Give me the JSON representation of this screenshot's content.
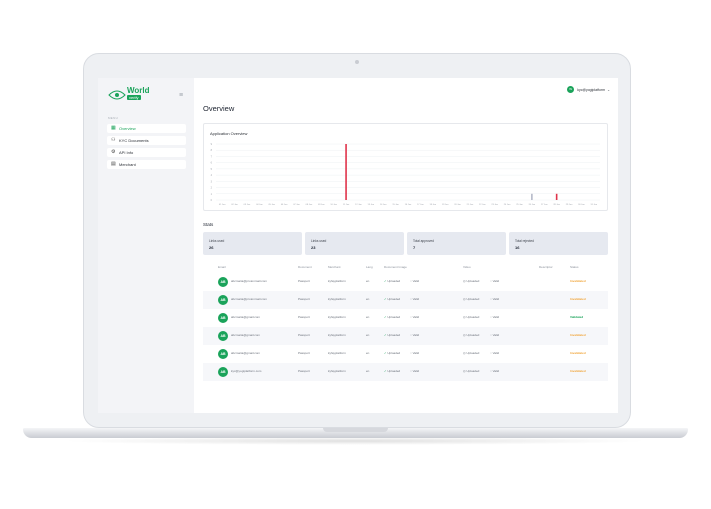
{
  "logo": {
    "name": "World",
    "tagline": "verify"
  },
  "header": {
    "user_initials": "W",
    "user_name": "kyc@yogiplatform",
    "user_caret": "⌄"
  },
  "sidebar": {
    "caption": "MENU",
    "items": [
      {
        "label": "Overview",
        "icon": "grid-icon",
        "active": true
      },
      {
        "label": "KYC Documents",
        "icon": "users-icon",
        "active": false
      },
      {
        "label": "API Info",
        "icon": "gear-icon",
        "active": false
      },
      {
        "label": "Merchant",
        "icon": "document-icon",
        "active": false
      }
    ]
  },
  "page": {
    "title": "Overview"
  },
  "chart_data": {
    "type": "bar",
    "title": "Application Overview",
    "ylim": [
      0,
      9
    ],
    "yticks": [
      "0",
      "1",
      "2",
      "3",
      "4",
      "5",
      "6",
      "7",
      "8",
      "9"
    ],
    "categories": [
      "01 Jan",
      "02 Jan",
      "03 Jan",
      "04 Jan",
      "05 Jan",
      "06 Jan",
      "07 Jan",
      "08 Jan",
      "09 Jan",
      "10 Jan",
      "11 Jan",
      "12 Jan",
      "13 Jan",
      "14 Jan",
      "15 Jan",
      "16 Jan",
      "17 Jan",
      "18 Jan",
      "19 Jan",
      "20 Jan",
      "21 Jan",
      "22 Jan",
      "23 Jan",
      "24 Jan",
      "25 Jan",
      "26 Jan",
      "27 Jan",
      "28 Jan",
      "29 Jan",
      "30 Jan",
      "31 Jan"
    ],
    "series": [
      {
        "color": "#e0344b",
        "values": [
          0,
          0,
          0,
          0,
          0,
          0,
          0,
          0,
          0,
          0,
          9,
          0,
          0,
          0,
          0,
          0,
          0,
          0,
          0,
          0,
          0,
          0,
          0,
          0,
          0,
          0,
          0,
          1,
          0,
          0,
          0
        ]
      },
      {
        "color": "#b5b9c9",
        "values": [
          0,
          0,
          0,
          0,
          0,
          0,
          0,
          0,
          0,
          0,
          0,
          0,
          0,
          0,
          0,
          0,
          0,
          0,
          0,
          0,
          0,
          0,
          0,
          0,
          0,
          1,
          0,
          0,
          0,
          0,
          0
        ]
      }
    ],
    "grid": true
  },
  "stats": {
    "title": "Stats",
    "cards": [
      {
        "label": "Links used",
        "value": "26"
      },
      {
        "label": "Links used",
        "value": "23"
      },
      {
        "label": "Total approved",
        "value": "7"
      },
      {
        "label": "Total rejected",
        "value": "16"
      }
    ]
  },
  "table": {
    "headers": [
      "Email",
      "Document",
      "Merchant",
      "Lang",
      "Document Image",
      "Video",
      "Descriptor",
      "Status"
    ],
    "rows": [
      {
        "initials": "AB",
        "email": "abcmaria@protonmail.com",
        "document": "Passport",
        "merchant": "kyfayplatform",
        "lang": "en",
        "doc_image": "Uploaded",
        "doc_valid": "Valid",
        "video": "Uploaded",
        "video_valid": "Valid",
        "status": "Invalidated",
        "status_color": "#f0a53a"
      },
      {
        "initials": "AB",
        "email": "abcmaria@protonmail.com",
        "document": "Passport",
        "merchant": "kyfayplatform",
        "lang": "en",
        "doc_image": "Uploaded",
        "doc_valid": "Valid",
        "video": "Uploaded",
        "video_valid": "Valid",
        "status": "Invalidated",
        "status_color": "#f0a53a"
      },
      {
        "initials": "AB",
        "email": "abcmaria@gmail.com",
        "document": "Passport",
        "merchant": "kyfayplatform",
        "lang": "en",
        "doc_image": "Uploaded",
        "doc_valid": "Valid",
        "video": "Uploaded",
        "video_valid": "Valid",
        "status": "Validated",
        "status_color": "#1aa35a"
      },
      {
        "initials": "AB",
        "email": "abcmaria@gmail.com",
        "document": "Passport",
        "merchant": "kyfayplatform",
        "lang": "en",
        "doc_image": "Uploaded",
        "doc_valid": "Valid",
        "video": "Uploaded",
        "video_valid": "Valid",
        "status": "Invalidated",
        "status_color": "#f0a53a"
      },
      {
        "initials": "AB",
        "email": "abcmaria@gmail.com",
        "document": "Passport",
        "merchant": "kyfayplatform",
        "lang": "en",
        "doc_image": "Uploaded",
        "doc_valid": "Valid",
        "video": "Uploaded",
        "video_valid": "Valid",
        "status": "Invalidated",
        "status_color": "#f0a53a"
      },
      {
        "initials": "AB",
        "email": "kyc@yogiplatform.com",
        "document": "Passport",
        "merchant": "kyfayplatform",
        "lang": "en",
        "doc_image": "Uploaded",
        "doc_valid": "Valid",
        "video": "Uploaded",
        "video_valid": "Valid",
        "status": "Invalidated",
        "status_color": "#f0a53a"
      }
    ]
  }
}
